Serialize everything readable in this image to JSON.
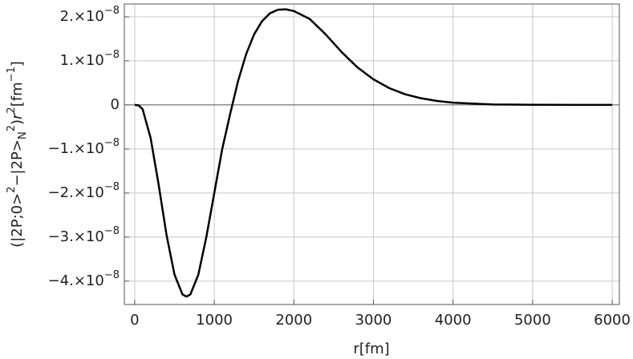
{
  "chart_data": {
    "type": "line",
    "xlabel": "r[fm]",
    "ylabel": [
      {
        "text": "(|2P;0>",
        "pos": "base"
      },
      {
        "text": "2",
        "pos": "sup"
      },
      {
        "text": "−|2P>",
        "pos": "base"
      },
      {
        "text": "N",
        "pos": "sub"
      },
      {
        "text": "2",
        "pos": "sup"
      },
      {
        "text": ")",
        "pos": "base"
      },
      {
        "text": "r",
        "pos": "italic"
      },
      {
        "text": "2",
        "pos": "sup"
      },
      {
        "text": "[fm",
        "pos": "base"
      },
      {
        "text": "−1",
        "pos": "sup"
      },
      {
        "text": "]",
        "pos": "base"
      }
    ],
    "xlim": [
      -130,
      6090
    ],
    "ylim": [
      -4.53e-08,
      2.29e-08
    ],
    "xticks": [
      0,
      1000,
      2000,
      3000,
      4000,
      5000,
      6000
    ],
    "yticks": [
      {
        "value": 2e-08,
        "label": "2.×10",
        "exp": "−8"
      },
      {
        "value": 1e-08,
        "label": "1.×10",
        "exp": "−8"
      },
      0,
      {
        "value": -1e-08,
        "label": "−1.×10",
        "exp": "−8"
      },
      {
        "value": -2e-08,
        "label": "−2.×10",
        "exp": "−8"
      },
      {
        "value": -3e-08,
        "label": "−3.×10",
        "exp": "−8"
      },
      {
        "value": -4e-08,
        "label": "−4.×10",
        "exp": "−8"
      }
    ],
    "grid": true,
    "series": [
      {
        "color": "#000000",
        "x": [
          0,
          50,
          100,
          200,
          300,
          400,
          500,
          600,
          650,
          700,
          800,
          900,
          1000,
          1100,
          1200,
          1300,
          1400,
          1500,
          1600,
          1700,
          1800,
          1900,
          2000,
          2200,
          2400,
          2600,
          2800,
          3000,
          3200,
          3400,
          3600,
          3800,
          4000,
          4500,
          5000,
          5500,
          6000
        ],
        "values": [
          0,
          -1e-10,
          -1e-09,
          -7.5e-09,
          -1.8e-08,
          -2.95e-08,
          -3.85e-08,
          -4.3e-08,
          -4.35e-08,
          -4.3e-08,
          -3.85e-08,
          -3e-08,
          -2e-08,
          -1e-08,
          -2e-09,
          5.5e-09,
          1.15e-08,
          1.6e-08,
          1.9e-08,
          2.08e-08,
          2.16e-08,
          2.17e-08,
          2.13e-08,
          1.95e-08,
          1.6e-08,
          1.2e-08,
          8.5e-09,
          5.8e-09,
          3.8e-09,
          2.4e-09,
          1.5e-09,
          9e-10,
          5e-10,
          1e-10,
          2e-11,
          0,
          0
        ]
      }
    ]
  }
}
